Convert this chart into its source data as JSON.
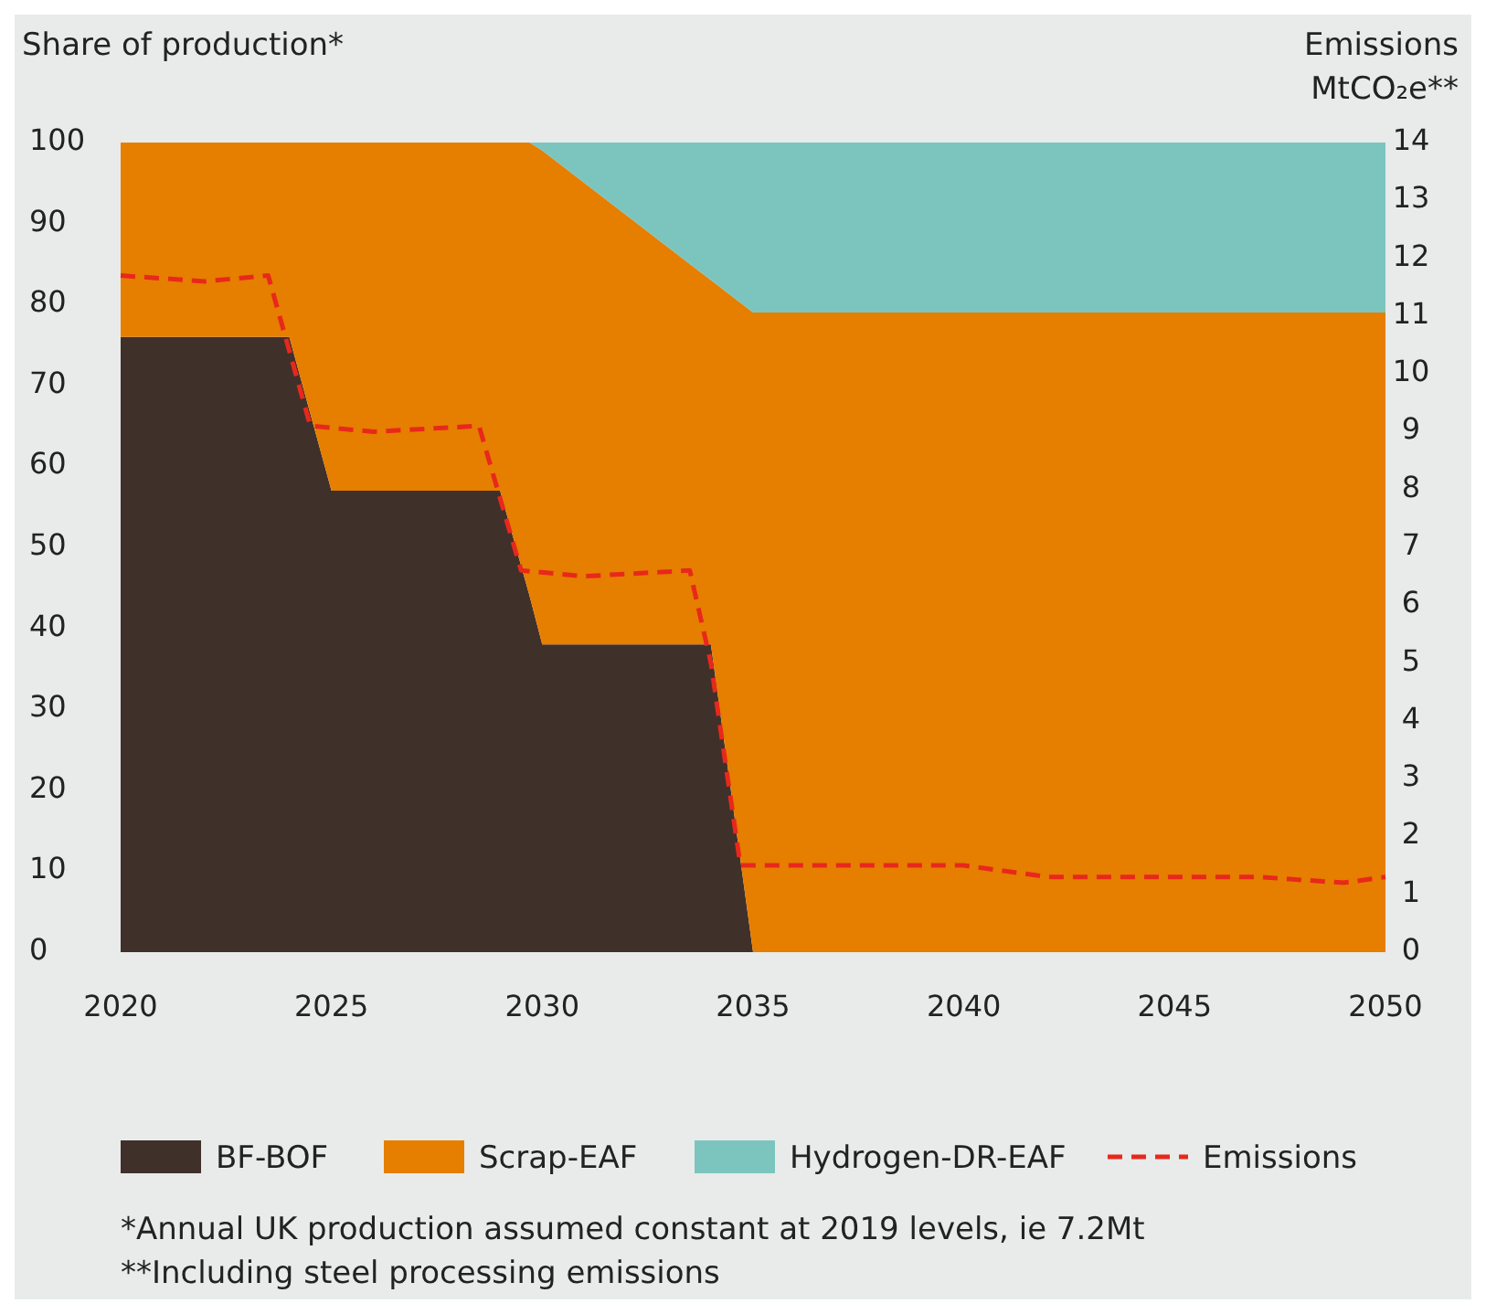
{
  "chart_data": {
    "type": "area",
    "stacked": true,
    "ylabel": "Share of production*",
    "y2label": "Emissions MtCO₂e**",
    "x": [
      2020,
      2024,
      2025,
      2029,
      2029.7,
      2030,
      2034,
      2035,
      2050
    ],
    "series": [
      {
        "name": "BF-BOF",
        "color": "#40302a",
        "values": [
          76,
          76,
          57,
          57,
          44,
          38,
          38,
          0,
          0
        ]
      },
      {
        "name": "Scrap-EAF",
        "color": "#e67e00",
        "values": [
          24,
          24,
          43,
          43,
          56,
          61,
          45,
          79,
          79
        ]
      },
      {
        "name": "Hydrogen-DR-EAF",
        "color": "#7cc5bf",
        "values": [
          0,
          0,
          0,
          0,
          0,
          1,
          17,
          21,
          21
        ]
      },
      {
        "name": "Emissions",
        "type": "line",
        "axis": "y2",
        "color": "#e8281c",
        "line_style": "dashed",
        "x": [
          2020,
          2022,
          2023.5,
          2024.5,
          2026,
          2028.5,
          2029.5,
          2031,
          2033.5,
          2034,
          2034.7,
          2040,
          2042,
          2045,
          2047,
          2049,
          2050
        ],
        "values": [
          11.7,
          11.6,
          11.7,
          9.1,
          9.0,
          9.1,
          6.6,
          6.5,
          6.6,
          5.0,
          1.5,
          1.5,
          1.3,
          1.3,
          1.3,
          1.2,
          1.3
        ]
      }
    ],
    "xlim": [
      2020,
      2050
    ],
    "xticks": [
      2020,
      2025,
      2030,
      2035,
      2040,
      2045,
      2050
    ],
    "ylim": [
      0,
      100
    ],
    "yticks": [
      0,
      10,
      20,
      30,
      40,
      50,
      60,
      70,
      80,
      90,
      100
    ],
    "y2lim": [
      0,
      14
    ],
    "y2ticks": [
      0,
      1,
      2,
      3,
      4,
      5,
      6,
      7,
      8,
      9,
      10,
      11,
      12,
      13,
      14
    ],
    "grid": false,
    "legend": "bottom",
    "annotations": [
      "*Annual UK production assumed constant at 2019 levels, ie 7.2Mt",
      "**Including steel processing emissions"
    ]
  }
}
